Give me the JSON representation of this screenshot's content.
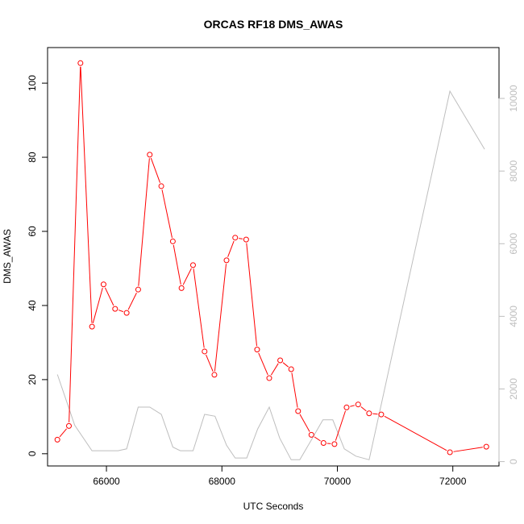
{
  "chart_data": {
    "type": "line",
    "title": "ORCAS RF18 DMS_AWAS",
    "xlabel": "UTC Seconds",
    "ylabel": "DMS_AWAS",
    "xlim": [
      64980,
      72800
    ],
    "ylim": [
      -3.3,
      109.6
    ],
    "y2lim": [
      -120,
      11400
    ],
    "xticks": [
      66000,
      68000,
      70000,
      72000
    ],
    "yticks": [
      0,
      20,
      40,
      60,
      80,
      100
    ],
    "y2ticks": [
      0,
      2000,
      4000,
      6000,
      8000,
      10000
    ],
    "x_tick_labels": [
      "66000",
      "68000",
      "70000",
      "72000"
    ],
    "y_tick_labels": [
      "0",
      "20",
      "40",
      "60",
      "80",
      "100"
    ],
    "y2_tick_labels": [
      "0",
      "2000",
      "4000",
      "6000",
      "8000",
      "10000"
    ],
    "series": [
      {
        "color": "#ff0000",
        "axis": "left",
        "style": "line+open-circles",
        "x": [
          65150,
          65350,
          65550,
          65750,
          65950,
          66150,
          66350,
          66550,
          66750,
          66950,
          67150,
          67300,
          67500,
          67700,
          67870,
          68080,
          68230,
          68420,
          68610,
          68820,
          69010,
          69200,
          69320,
          69550,
          69760,
          69950,
          70160,
          70360,
          70550,
          70760,
          71950,
          72580
        ],
        "y": [
          3.8,
          7.5,
          105.4,
          34.3,
          45.7,
          39.1,
          38.0,
          44.3,
          80.7,
          72.2,
          57.3,
          44.7,
          50.9,
          27.6,
          21.3,
          52.2,
          58.3,
          57.8,
          28.1,
          20.4,
          25.2,
          22.8,
          11.5,
          5.1,
          2.9,
          2.6,
          12.5,
          13.3,
          10.9,
          10.6,
          0.4,
          1.9
        ]
      },
      {
        "color": "#bebebe",
        "axis": "right",
        "style": "line",
        "x": [
          65150,
          65450,
          65750,
          66000,
          66200,
          66350,
          66550,
          66750,
          66950,
          67150,
          67280,
          67500,
          67700,
          67880,
          68080,
          68230,
          68430,
          68620,
          68820,
          69000,
          69200,
          69350,
          69550,
          69750,
          69920,
          70120,
          70320,
          70550,
          71950,
          72550
        ],
        "y": [
          2400,
          1000,
          300,
          300,
          300,
          350,
          1500,
          1500,
          1300,
          400,
          300,
          300,
          1300,
          1250,
          450,
          100,
          100,
          900,
          1500,
          650,
          50,
          50,
          600,
          1150,
          1150,
          350,
          150,
          50,
          10200,
          8600
        ]
      }
    ]
  }
}
